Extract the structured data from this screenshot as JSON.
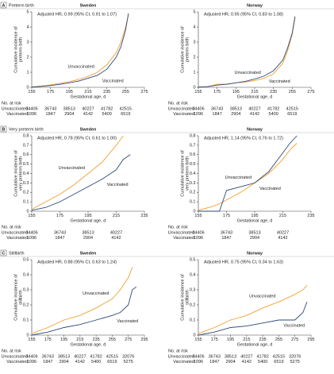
{
  "chart_data": [
    {
      "type": "line",
      "panel_letter": "A",
      "panel_title": "Preterm birth",
      "title": "Sweden",
      "annotation": "Adjusted HR, 0.99 (95% CI, 0.91 to 1.07)",
      "ylabel": [
        "Cumulative incidence of",
        "preterm birth"
      ],
      "xlabel": "Gestational age, d",
      "xlim": [
        155,
        275
      ],
      "xticks": [
        155,
        175,
        195,
        215,
        235,
        255,
        275
      ],
      "ylim": [
        0,
        5
      ],
      "yticks": [
        0,
        1,
        2,
        3,
        4,
        5
      ],
      "x": [
        155,
        165,
        175,
        185,
        195,
        205,
        215,
        225,
        235,
        245,
        250,
        255,
        258
      ],
      "series": [
        {
          "name": "Unvaccinated",
          "color": "#f0a030",
          "values": [
            0.02,
            0.08,
            0.16,
            0.26,
            0.38,
            0.52,
            0.72,
            1.0,
            1.5,
            2.3,
            3.0,
            4.0,
            4.8
          ]
        },
        {
          "name": "Vaccinated",
          "color": "#2b4a7b",
          "values": [
            0.02,
            0.06,
            0.12,
            0.2,
            0.3,
            0.42,
            0.6,
            0.8,
            1.2,
            2.0,
            2.7,
            3.8,
            4.9
          ]
        }
      ],
      "at_risk": {
        "title": "No. at risk",
        "rows": [
          {
            "name": "Unvaccinated",
            "values": [
              34406,
              36743,
              38513,
              40227,
              41782,
              42515
            ]
          },
          {
            "name": "Vaccinated",
            "values": [
              1096,
              1847,
              2904,
              4142,
              5400,
              6519
            ]
          }
        ]
      }
    },
    {
      "type": "line",
      "title": "Norway",
      "annotation": "Adjusted HR, 0.95 (95% CI, 0.83 to 1.08)",
      "ylabel": [
        "Cumulative incidence of",
        "preterm birth"
      ],
      "xlabel": "Gestational age, d",
      "xlim": [
        155,
        275
      ],
      "xticks": [
        155,
        175,
        195,
        215,
        235,
        255,
        275
      ],
      "ylim": [
        0,
        5
      ],
      "yticks": [
        0,
        1,
        2,
        3,
        4,
        5
      ],
      "x": [
        155,
        165,
        175,
        185,
        195,
        205,
        215,
        225,
        235,
        245,
        250,
        255,
        258
      ],
      "series": [
        {
          "name": "Unvaccinated",
          "color": "#f0a030",
          "values": [
            0.02,
            0.05,
            0.2,
            0.22,
            0.3,
            0.35,
            0.45,
            0.6,
            0.9,
            1.6,
            2.4,
            3.5,
            4.6
          ]
        },
        {
          "name": "Vaccinated",
          "color": "#2b4a7b",
          "values": [
            0.02,
            0.05,
            0.15,
            0.2,
            0.3,
            0.4,
            0.55,
            0.75,
            1.1,
            1.8,
            2.6,
            3.6,
            4.7
          ]
        }
      ],
      "at_risk": {
        "title": "No. at risk",
        "rows": [
          {
            "name": "Unvaccinated",
            "values": [
              34406,
              36743,
              38513,
              40227,
              41782,
              42515
            ]
          },
          {
            "name": "Vaccinated",
            "values": [
              1096,
              1847,
              2904,
              4142,
              5400,
              6519
            ]
          }
        ]
      }
    },
    {
      "type": "line",
      "panel_letter": "B",
      "panel_title": "Very preterm birth",
      "title": "Sweden",
      "annotation": "Adjusted HR, 0.78 (95% CI, 0.61 to 1.00)",
      "ylabel": [
        "Cumulative incidence of",
        "very preterm birth"
      ],
      "xlabel": "Gestational age, d",
      "xlim": [
        155,
        235
      ],
      "xticks": [
        155,
        175,
        195,
        215,
        235
      ],
      "ylim": [
        0,
        0.8
      ],
      "yticks": [
        0,
        0.1,
        0.2,
        0.3,
        0.4,
        0.5,
        0.6,
        0.7,
        0.8
      ],
      "x": [
        155,
        165,
        175,
        185,
        195,
        205,
        215,
        220,
        225
      ],
      "series": [
        {
          "name": "Unvaccinated",
          "color": "#f0a030",
          "values": [
            0.02,
            0.1,
            0.18,
            0.28,
            0.4,
            0.52,
            0.7,
            0.8,
            null
          ]
        },
        {
          "name": "Vaccinated",
          "color": "#2b4a7b",
          "values": [
            0.01,
            0.04,
            0.1,
            0.18,
            0.26,
            0.34,
            0.44,
            0.55,
            0.6
          ]
        }
      ],
      "at_risk": {
        "title": "No. at risk",
        "rows": [
          {
            "name": "Unvaccinated",
            "values": [
              34406,
              36743,
              38513,
              40227
            ]
          },
          {
            "name": "Vaccinated",
            "values": [
              1096,
              1847,
              2904,
              4142
            ]
          }
        ]
      }
    },
    {
      "type": "line",
      "title": "Norway",
      "annotation": "Adjusted HR, 1.14 (95% CI, 0.76 to 1.72)",
      "ylabel": [
        "Cumulative incidence of",
        "very preterm birth"
      ],
      "xlabel": "Gestational age, d",
      "xlim": [
        155,
        235
      ],
      "xticks": [
        155,
        175,
        195,
        215,
        235
      ],
      "ylim": [
        0,
        0.8
      ],
      "yticks": [
        0,
        0.1,
        0.2,
        0.3,
        0.4,
        0.5,
        0.6,
        0.7,
        0.8
      ],
      "x": [
        155,
        165,
        170,
        175,
        185,
        195,
        205,
        215,
        220,
        225
      ],
      "series": [
        {
          "name": "Unvaccinated",
          "color": "#f0a030",
          "values": [
            0.01,
            0.05,
            0.08,
            0.12,
            0.2,
            0.3,
            0.4,
            0.55,
            0.65,
            0.72
          ]
        },
        {
          "name": "Vaccinated",
          "color": "#2b4a7b",
          "values": [
            0,
            0,
            0,
            0.22,
            0.26,
            0.3,
            0.42,
            0.62,
            0.72,
            0.8
          ]
        }
      ],
      "at_risk": {
        "title": "No. at risk",
        "rows": [
          {
            "name": "Unvaccinated",
            "values": [
              34406,
              36743,
              38513,
              40227
            ]
          },
          {
            "name": "Vaccinated",
            "values": [
              1096,
              1847,
              2904,
              4142
            ]
          }
        ]
      }
    },
    {
      "type": "line",
      "panel_letter": "C",
      "panel_title": "Stillbirth",
      "title": "Sweden",
      "annotation": "Adjusted HR, 0.88 (95% CI, 0.63 to 1.24)",
      "ylabel": [
        "Cumulative incidence of",
        "stillbirth"
      ],
      "xlabel": "Gestational age, d",
      "xlim": [
        155,
        295
      ],
      "xticks": [
        155,
        175,
        195,
        215,
        235,
        255,
        275,
        295
      ],
      "ylim": [
        0,
        0.5
      ],
      "yticks": [
        0,
        0.1,
        0.2,
        0.3,
        0.4,
        0.5
      ],
      "x": [
        155,
        175,
        195,
        215,
        235,
        255,
        265,
        275,
        280,
        285
      ],
      "series": [
        {
          "name": "Unvaccinated",
          "color": "#f0a030",
          "values": [
            0.01,
            0.05,
            0.1,
            0.13,
            0.18,
            0.24,
            0.3,
            0.38,
            0.45,
            null
          ]
        },
        {
          "name": "Vaccinated",
          "color": "#2b4a7b",
          "values": [
            0,
            0.02,
            0.05,
            0.07,
            0.1,
            0.13,
            0.15,
            0.2,
            0.3,
            0.32
          ]
        }
      ],
      "at_risk": {
        "title": "No. at risk",
        "rows": [
          {
            "name": "Unvaccinated",
            "values": [
              34406,
              36743,
              38513,
              40227,
              41782,
              42515,
              32076
            ]
          },
          {
            "name": "Vaccinated",
            "values": [
              1096,
              1847,
              2904,
              4142,
              5400,
              6519,
              5275
            ]
          }
        ]
      }
    },
    {
      "type": "line",
      "title": "Norway",
      "annotation": "Adjusted HR, 0.75 (95% CI, 0.34 to 1.63)",
      "ylabel": [
        "Cumulative incidence of",
        "stillbirth"
      ],
      "xlabel": "Gestational age, d",
      "xlim": [
        155,
        295
      ],
      "xticks": [
        155,
        175,
        195,
        215,
        235,
        255,
        275,
        295
      ],
      "ylim": [
        0,
        0.5
      ],
      "yticks": [
        0,
        0.1,
        0.2,
        0.3,
        0.4,
        0.5
      ],
      "x": [
        155,
        175,
        195,
        215,
        235,
        255,
        275,
        285,
        290
      ],
      "series": [
        {
          "name": "Unvaccinated",
          "color": "#f0a030",
          "values": [
            0.01,
            0.05,
            0.1,
            0.13,
            0.18,
            0.22,
            0.27,
            0.3,
            0.33
          ]
        },
        {
          "name": "Vaccinated",
          "color": "#2b4a7b",
          "values": [
            0,
            0.02,
            0.05,
            0.06,
            0.08,
            0.1,
            0.1,
            0.15,
            0.22
          ]
        }
      ],
      "at_risk": {
        "title": "No. at risk",
        "rows": [
          {
            "name": "Unvaccinated",
            "values": [
              34406,
              36743,
              38513,
              40227,
              41782,
              42515,
              32076
            ]
          },
          {
            "name": "Vaccinated",
            "values": [
              1096,
              1847,
              2904,
              4142,
              5400,
              6519,
              5275
            ]
          }
        ]
      }
    }
  ]
}
